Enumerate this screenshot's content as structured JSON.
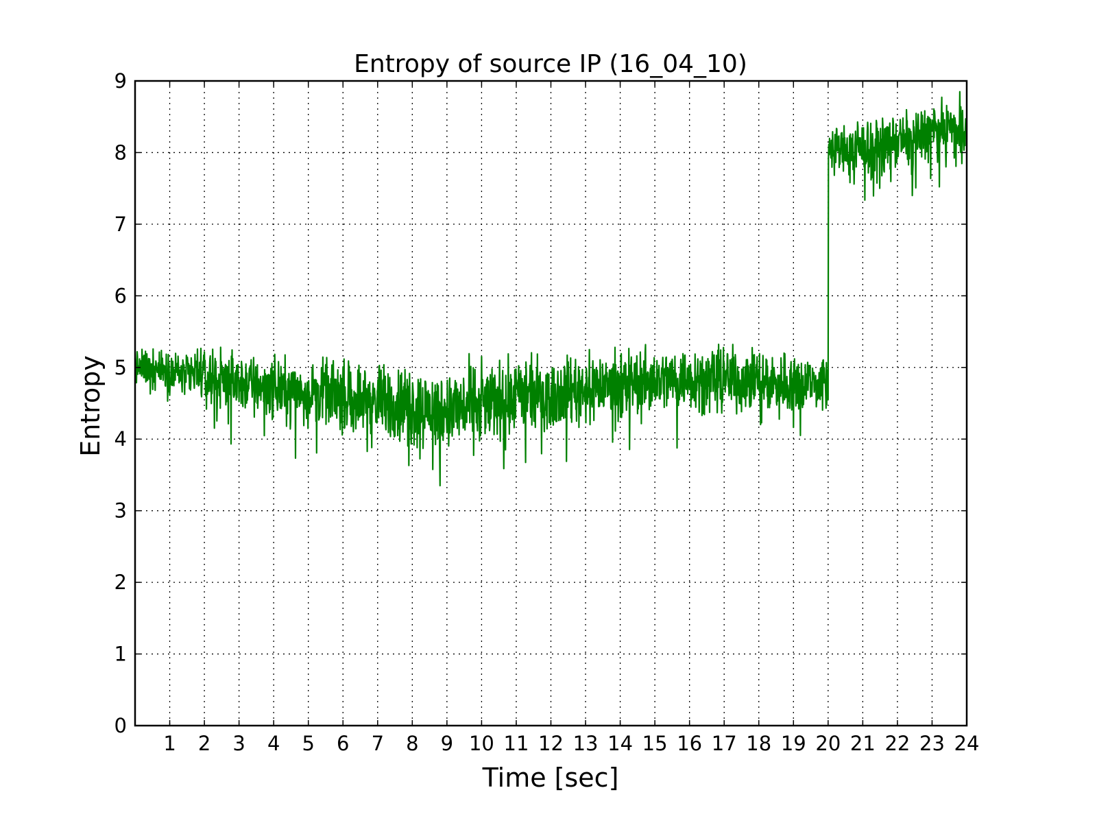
{
  "chart_data": {
    "type": "line",
    "title": "Entropy of source IP (16_04_10)",
    "xlabel": "Time [sec]",
    "ylabel": "Entropy",
    "xlim": [
      0,
      24
    ],
    "ylim": [
      0,
      9
    ],
    "x_ticks": [
      1,
      2,
      3,
      4,
      5,
      6,
      7,
      8,
      9,
      10,
      11,
      12,
      13,
      14,
      15,
      16,
      17,
      18,
      19,
      20,
      21,
      22,
      23,
      24
    ],
    "y_ticks": [
      0,
      1,
      2,
      3,
      4,
      5,
      6,
      7,
      8,
      9
    ],
    "grid": true,
    "legend": "none",
    "series": [
      {
        "color": "#008000",
        "trend": {
          "x": [
            0,
            1,
            2,
            3,
            4,
            5,
            6,
            7,
            8,
            9,
            10,
            11,
            12,
            13,
            14,
            15,
            16,
            17,
            18,
            19,
            20,
            20.01,
            21,
            22,
            23,
            24
          ],
          "mean": [
            5.0,
            4.95,
            4.88,
            4.8,
            4.72,
            4.68,
            4.62,
            4.55,
            4.45,
            4.4,
            4.5,
            4.6,
            4.65,
            4.72,
            4.78,
            4.82,
            4.85,
            4.85,
            4.82,
            4.78,
            4.8,
            8.05,
            8.05,
            8.15,
            8.3,
            8.35
          ],
          "spread": [
            0.18,
            0.2,
            0.22,
            0.28,
            0.28,
            0.28,
            0.3,
            0.33,
            0.38,
            0.38,
            0.36,
            0.35,
            0.33,
            0.32,
            0.32,
            0.3,
            0.3,
            0.3,
            0.3,
            0.3,
            0.3,
            0.22,
            0.25,
            0.25,
            0.28,
            0.25
          ]
        },
        "sample_count": 2400,
        "observed_min": {
          "x": 8.8,
          "y": 3.35
        },
        "observed_max": {
          "x": 23.8,
          "y": 8.85
        }
      }
    ]
  }
}
